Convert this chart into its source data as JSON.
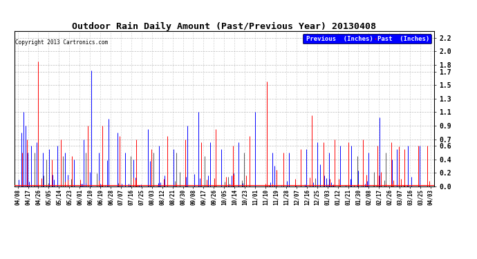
{
  "title": "Outdoor Rain Daily Amount (Past/Previous Year) 20130408",
  "copyright_text": "Copyright 2013 Cartronics.com",
  "yticks": [
    0.0,
    0.2,
    0.4,
    0.6,
    0.7,
    0.9,
    1.1,
    1.3,
    1.5,
    1.7,
    1.8,
    2.0,
    2.2
  ],
  "ylim": [
    0.0,
    2.3
  ],
  "background_color": "#ffffff",
  "plot_bg_color": "#ffffff",
  "grid_color": "#aaaaaa",
  "legend_previous_label": "Previous  (Inches)",
  "legend_past_label": "Past  (Inches)",
  "previous_color": "#0000ff",
  "past_color": "#ff0000",
  "black_color": "#555555",
  "x_labels": [
    "04/08",
    "04/17",
    "04/26",
    "05/05",
    "05/14",
    "05/23",
    "06/01",
    "06/10",
    "06/19",
    "06/28",
    "07/07",
    "07/16",
    "07/25",
    "08/03",
    "08/12",
    "08/21",
    "08/30",
    "09/08",
    "09/17",
    "09/26",
    "10/05",
    "10/14",
    "10/23",
    "11/01",
    "11/10",
    "11/19",
    "11/28",
    "12/07",
    "12/16",
    "12/25",
    "01/03",
    "01/12",
    "01/21",
    "01/30",
    "02/08",
    "02/17",
    "02/26",
    "03/07",
    "03/16",
    "03/25",
    "04/03"
  ],
  "n_points": 366,
  "figwidth": 6.9,
  "figheight": 3.75,
  "dpi": 100
}
